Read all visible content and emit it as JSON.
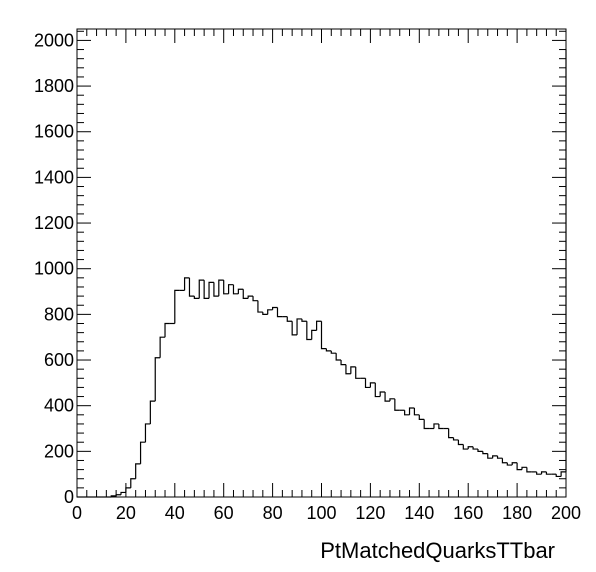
{
  "chart_data": {
    "type": "histogram",
    "title": "",
    "xlabel": "PtMatchedQuarksTTbar",
    "ylabel": "",
    "xlim": [
      0,
      200
    ],
    "ylim": [
      0,
      2050
    ],
    "xticks": [
      0,
      20,
      40,
      60,
      80,
      100,
      120,
      140,
      160,
      180,
      200
    ],
    "yticks": [
      0,
      200,
      400,
      600,
      800,
      1000,
      1200,
      1400,
      1600,
      1800,
      2000
    ],
    "bin_width": 2,
    "bin_edges_start": 0,
    "values": [
      0,
      0,
      0,
      0,
      0,
      0,
      0,
      5,
      10,
      20,
      40,
      80,
      145,
      240,
      320,
      420,
      610,
      700,
      760,
      760,
      905,
      905,
      960,
      880,
      870,
      950,
      870,
      940,
      880,
      950,
      890,
      930,
      890,
      910,
      870,
      880,
      860,
      810,
      800,
      820,
      830,
      790,
      790,
      770,
      710,
      780,
      770,
      690,
      730,
      770,
      650,
      640,
      630,
      600,
      580,
      540,
      570,
      520,
      520,
      480,
      500,
      440,
      460,
      420,
      430,
      380,
      380,
      360,
      390,
      360,
      340,
      300,
      300,
      320,
      300,
      300,
      260,
      250,
      230,
      210,
      220,
      210,
      200,
      190,
      170,
      180,
      170,
      150,
      140,
      150,
      120,
      130,
      110,
      110,
      100,
      110,
      100,
      100,
      90,
      110
    ]
  }
}
